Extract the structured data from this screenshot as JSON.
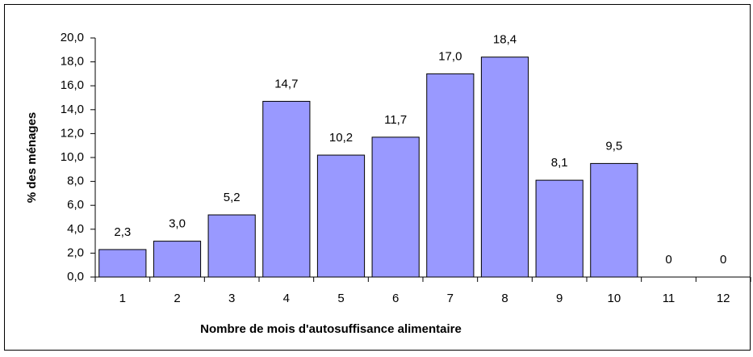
{
  "chart_data": {
    "type": "bar",
    "xlabel": "Nombre de mois d'autosuffisance alimentaire",
    "ylabel": "% des ménages",
    "categories": [
      "1",
      "2",
      "3",
      "4",
      "5",
      "6",
      "7",
      "8",
      "9",
      "10",
      "11",
      "12"
    ],
    "values": [
      2.3,
      3.0,
      5.2,
      14.7,
      10.2,
      11.7,
      17.0,
      18.4,
      8.1,
      9.5,
      0,
      0
    ],
    "value_labels": [
      "2,3",
      "3,0",
      "5,2",
      "14,7",
      "10,2",
      "11,7",
      "17,0",
      "18,4",
      "8,1",
      "9,5",
      "0",
      "0"
    ],
    "color": "#9999ff",
    "ylim": [
      0,
      20
    ],
    "yticks": [
      {
        "value": 0,
        "label": "0,0"
      },
      {
        "value": 2,
        "label": "2,0"
      },
      {
        "value": 4,
        "label": "4,0"
      },
      {
        "value": 6,
        "label": "6,0"
      },
      {
        "value": 8,
        "label": "8,0"
      },
      {
        "value": 10,
        "label": "10,0"
      },
      {
        "value": 12,
        "label": "12,0"
      },
      {
        "value": 14,
        "label": "14,0"
      },
      {
        "value": 16,
        "label": "16,0"
      },
      {
        "value": 18,
        "label": "18,0"
      },
      {
        "value": 20,
        "label": "20,0"
      }
    ],
    "grid": false
  }
}
